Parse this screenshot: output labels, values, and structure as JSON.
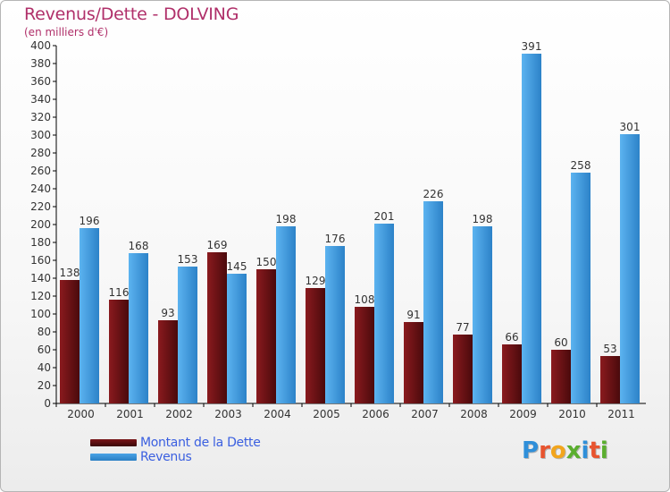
{
  "title": "Revenus/Dette - DOLVING",
  "subtitle": "(en milliers d'€)",
  "logo": {
    "text": "Proxiti",
    "letters": [
      {
        "ch": "P",
        "color": "#2f8fd9"
      },
      {
        "ch": "r",
        "color": "#e8542f"
      },
      {
        "ch": "o",
        "color": "#f2a51d"
      },
      {
        "ch": "x",
        "color": "#5aae2e"
      },
      {
        "ch": "i",
        "color": "#2f8fd9"
      },
      {
        "ch": "t",
        "color": "#e8542f"
      },
      {
        "ch": "i",
        "color": "#5aae2e"
      }
    ]
  },
  "chart_data": {
    "type": "bar",
    "title": "Revenus/Dette - DOLVING",
    "subtitle": "(en milliers d'€)",
    "categories": [
      "2000",
      "2001",
      "2002",
      "2003",
      "2004",
      "2005",
      "2006",
      "2007",
      "2008",
      "2009",
      "2010",
      "2011"
    ],
    "series": [
      {
        "name": "Montant de la Dette",
        "color": "#7a1518",
        "values": [
          138,
          116,
          93,
          169,
          150,
          129,
          108,
          91,
          77,
          66,
          60,
          53
        ]
      },
      {
        "name": "Revenus",
        "color": "#4aa3e6",
        "values": [
          196,
          168,
          153,
          145,
          198,
          176,
          201,
          226,
          198,
          391,
          258,
          301
        ]
      }
    ],
    "ylim": [
      0,
      400
    ],
    "ytick_step": 20,
    "grid": false,
    "legend": "bottom-left"
  }
}
